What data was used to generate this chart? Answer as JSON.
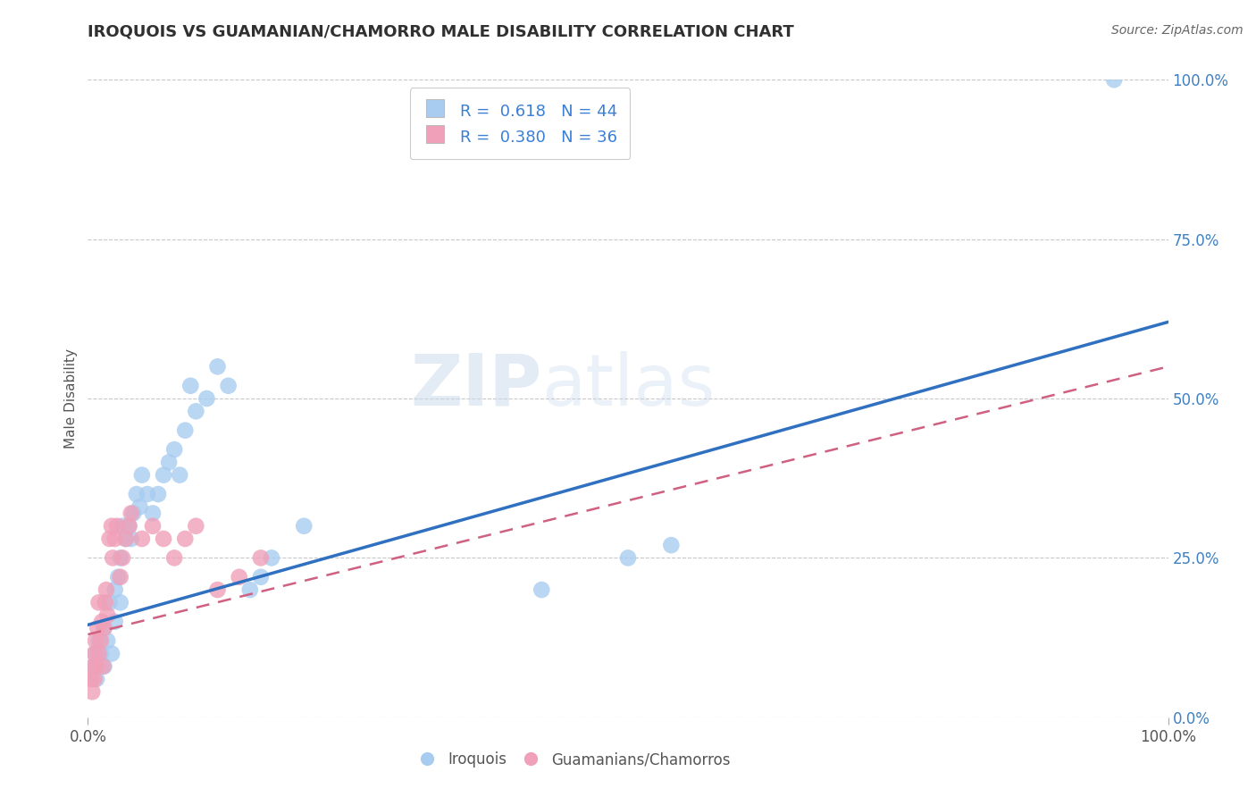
{
  "title": "IROQUOIS VS GUAMANIAN/CHAMORRO MALE DISABILITY CORRELATION CHART",
  "source": "Source: ZipAtlas.com",
  "ylabel": "Male Disability",
  "xlim": [
    0,
    1
  ],
  "ylim": [
    0,
    1
  ],
  "ytick_positions": [
    0.0,
    0.25,
    0.5,
    0.75,
    1.0
  ],
  "ytick_labels": [
    "0.0%",
    "25.0%",
    "50.0%",
    "75.0%",
    "100.0%"
  ],
  "color_blue": "#A8CCF0",
  "color_pink": "#F0A0B8",
  "line_blue": "#3070C0",
  "line_pink": "#D06080",
  "background_color": "#FFFFFF",
  "grid_color": "#C8C8C8",
  "title_color": "#303030",
  "axis_label_color": "#555555",
  "tick_color_right": "#4080C0",
  "iroquois_scatter": [
    [
      0.005,
      0.08
    ],
    [
      0.007,
      0.1
    ],
    [
      0.008,
      0.06
    ],
    [
      0.01,
      0.12
    ],
    [
      0.012,
      0.1
    ],
    [
      0.015,
      0.08
    ],
    [
      0.015,
      0.14
    ],
    [
      0.018,
      0.12
    ],
    [
      0.02,
      0.18
    ],
    [
      0.022,
      0.1
    ],
    [
      0.025,
      0.15
    ],
    [
      0.025,
      0.2
    ],
    [
      0.028,
      0.22
    ],
    [
      0.03,
      0.18
    ],
    [
      0.03,
      0.25
    ],
    [
      0.032,
      0.3
    ],
    [
      0.035,
      0.28
    ],
    [
      0.038,
      0.3
    ],
    [
      0.04,
      0.28
    ],
    [
      0.042,
      0.32
    ],
    [
      0.045,
      0.35
    ],
    [
      0.048,
      0.33
    ],
    [
      0.05,
      0.38
    ],
    [
      0.055,
      0.35
    ],
    [
      0.06,
      0.32
    ],
    [
      0.065,
      0.35
    ],
    [
      0.07,
      0.38
    ],
    [
      0.075,
      0.4
    ],
    [
      0.08,
      0.42
    ],
    [
      0.085,
      0.38
    ],
    [
      0.09,
      0.45
    ],
    [
      0.095,
      0.52
    ],
    [
      0.1,
      0.48
    ],
    [
      0.11,
      0.5
    ],
    [
      0.12,
      0.55
    ],
    [
      0.13,
      0.52
    ],
    [
      0.15,
      0.2
    ],
    [
      0.16,
      0.22
    ],
    [
      0.17,
      0.25
    ],
    [
      0.2,
      0.3
    ],
    [
      0.42,
      0.2
    ],
    [
      0.5,
      0.25
    ],
    [
      0.54,
      0.27
    ],
    [
      0.95,
      1.0
    ]
  ],
  "chamorro_scatter": [
    [
      0.003,
      0.06
    ],
    [
      0.005,
      0.08
    ],
    [
      0.006,
      0.1
    ],
    [
      0.007,
      0.12
    ],
    [
      0.008,
      0.08
    ],
    [
      0.009,
      0.14
    ],
    [
      0.01,
      0.1
    ],
    [
      0.01,
      0.18
    ],
    [
      0.012,
      0.12
    ],
    [
      0.013,
      0.15
    ],
    [
      0.014,
      0.08
    ],
    [
      0.015,
      0.14
    ],
    [
      0.016,
      0.18
    ],
    [
      0.017,
      0.2
    ],
    [
      0.018,
      0.16
    ],
    [
      0.02,
      0.28
    ],
    [
      0.022,
      0.3
    ],
    [
      0.023,
      0.25
    ],
    [
      0.025,
      0.28
    ],
    [
      0.027,
      0.3
    ],
    [
      0.03,
      0.22
    ],
    [
      0.032,
      0.25
    ],
    [
      0.035,
      0.28
    ],
    [
      0.038,
      0.3
    ],
    [
      0.04,
      0.32
    ],
    [
      0.05,
      0.28
    ],
    [
      0.06,
      0.3
    ],
    [
      0.07,
      0.28
    ],
    [
      0.08,
      0.25
    ],
    [
      0.09,
      0.28
    ],
    [
      0.1,
      0.3
    ],
    [
      0.12,
      0.2
    ],
    [
      0.14,
      0.22
    ],
    [
      0.16,
      0.25
    ],
    [
      0.004,
      0.04
    ],
    [
      0.006,
      0.06
    ]
  ],
  "iroquois_line_x": [
    0.0,
    1.0
  ],
  "iroquois_line_y": [
    0.145,
    0.62
  ],
  "chamorro_line_x": [
    0.0,
    1.0
  ],
  "chamorro_line_y": [
    0.13,
    0.55
  ]
}
